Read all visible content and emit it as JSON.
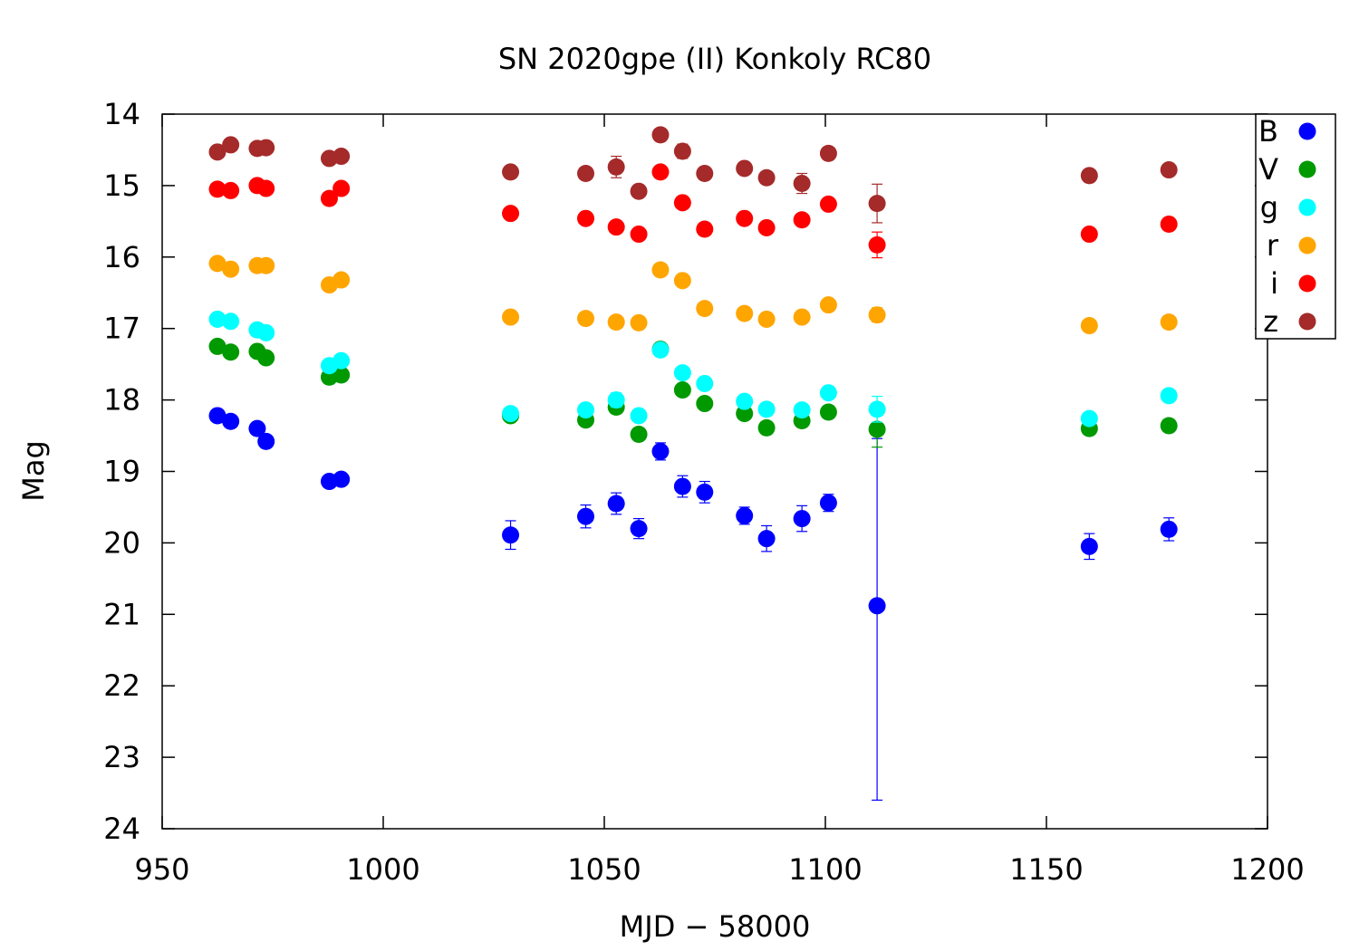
{
  "chart_data": {
    "type": "scatter",
    "title": "SN 2020gpe (II) Konkoly RC80",
    "xlabel": "MJD − 58000",
    "ylabel": "Mag",
    "xlim": [
      950,
      1200
    ],
    "ylim": [
      14,
      24
    ],
    "y_inverted": true,
    "x_ticks": [
      950,
      1000,
      1050,
      1100,
      1150,
      1200
    ],
    "y_ticks": [
      14,
      15,
      16,
      17,
      18,
      19,
      20,
      21,
      22,
      23,
      24
    ],
    "grid": false,
    "legend_position": "top-right",
    "series": [
      {
        "name": "B",
        "color": "#0000ff",
        "points": [
          {
            "x": 962.5,
            "y": 18.22,
            "err": 0.06
          },
          {
            "x": 965.5,
            "y": 18.3,
            "err": 0.06
          },
          {
            "x": 971.5,
            "y": 18.4,
            "err": 0.06
          },
          {
            "x": 973.5,
            "y": 18.58,
            "err": 0.06
          },
          {
            "x": 987.8,
            "y": 19.14,
            "err": 0.06
          },
          {
            "x": 990.5,
            "y": 19.11,
            "err": 0.06
          },
          {
            "x": 1028.8,
            "y": 19.89,
            "err": 0.2
          },
          {
            "x": 1045.8,
            "y": 19.63,
            "err": 0.16
          },
          {
            "x": 1052.7,
            "y": 19.45,
            "err": 0.15
          },
          {
            "x": 1057.8,
            "y": 19.8,
            "err": 0.14
          },
          {
            "x": 1062.7,
            "y": 18.72,
            "err": 0.12
          },
          {
            "x": 1067.7,
            "y": 19.21,
            "err": 0.15
          },
          {
            "x": 1072.7,
            "y": 19.29,
            "err": 0.15
          },
          {
            "x": 1081.7,
            "y": 19.62,
            "err": 0.12
          },
          {
            "x": 1086.7,
            "y": 19.94,
            "err": 0.18
          },
          {
            "x": 1094.7,
            "y": 19.66,
            "err": 0.18
          },
          {
            "x": 1100.7,
            "y": 19.44,
            "err": 0.12
          },
          {
            "x": 1111.7,
            "y": 20.88,
            "err_low": 2.34,
            "err_high": 2.72
          },
          {
            "x": 1159.7,
            "y": 20.05,
            "err": 0.18
          },
          {
            "x": 1177.7,
            "y": 19.81,
            "err": 0.16
          }
        ]
      },
      {
        "name": "V",
        "color": "#009900",
        "points": [
          {
            "x": 962.5,
            "y": 17.25,
            "err": 0.04
          },
          {
            "x": 965.5,
            "y": 17.33,
            "err": 0.04
          },
          {
            "x": 971.5,
            "y": 17.32,
            "err": 0.04
          },
          {
            "x": 973.5,
            "y": 17.41,
            "err": 0.04
          },
          {
            "x": 987.8,
            "y": 17.68,
            "err": 0.04
          },
          {
            "x": 990.5,
            "y": 17.65,
            "err": 0.04
          },
          {
            "x": 1028.8,
            "y": 18.22,
            "err": 0.06
          },
          {
            "x": 1045.8,
            "y": 18.28,
            "err": 0.06
          },
          {
            "x": 1052.7,
            "y": 18.1,
            "err": 0.07
          },
          {
            "x": 1057.8,
            "y": 18.48,
            "err": 0.06
          },
          {
            "x": 1062.7,
            "y": 17.29,
            "err": 0.05
          },
          {
            "x": 1067.7,
            "y": 17.86,
            "err": 0.05
          },
          {
            "x": 1072.7,
            "y": 18.05,
            "err": 0.05
          },
          {
            "x": 1081.7,
            "y": 18.19,
            "err": 0.05
          },
          {
            "x": 1086.7,
            "y": 18.39,
            "err": 0.06
          },
          {
            "x": 1094.7,
            "y": 18.29,
            "err": 0.08
          },
          {
            "x": 1100.7,
            "y": 18.17,
            "err": 0.05
          },
          {
            "x": 1111.7,
            "y": 18.41,
            "err": 0.25
          },
          {
            "x": 1159.7,
            "y": 18.4,
            "err": 0.05
          },
          {
            "x": 1177.7,
            "y": 18.36,
            "err": 0.05
          }
        ]
      },
      {
        "name": "g",
        "color": "#00ffff",
        "points": [
          {
            "x": 962.5,
            "y": 16.87,
            "err": 0.03
          },
          {
            "x": 965.5,
            "y": 16.9,
            "err": 0.03
          },
          {
            "x": 971.5,
            "y": 17.02,
            "err": 0.03
          },
          {
            "x": 973.5,
            "y": 17.06,
            "err": 0.03
          },
          {
            "x": 987.8,
            "y": 17.52,
            "err": 0.03
          },
          {
            "x": 990.5,
            "y": 17.45,
            "err": 0.03
          },
          {
            "x": 1028.8,
            "y": 18.19,
            "err": 0.06
          },
          {
            "x": 1045.8,
            "y": 18.14,
            "err": 0.06
          },
          {
            "x": 1052.7,
            "y": 18.0,
            "err": 0.1
          },
          {
            "x": 1057.8,
            "y": 18.22,
            "err": 0.05
          },
          {
            "x": 1062.7,
            "y": 17.3,
            "err": 0.05
          },
          {
            "x": 1067.7,
            "y": 17.62,
            "err": 0.05
          },
          {
            "x": 1072.7,
            "y": 17.77,
            "err": 0.05
          },
          {
            "x": 1081.7,
            "y": 18.02,
            "err": 0.05
          },
          {
            "x": 1086.7,
            "y": 18.13,
            "err": 0.05
          },
          {
            "x": 1094.7,
            "y": 18.14,
            "err": 0.08
          },
          {
            "x": 1100.7,
            "y": 17.9,
            "err": 0.05
          },
          {
            "x": 1111.7,
            "y": 18.13,
            "err": 0.18
          },
          {
            "x": 1159.7,
            "y": 18.26,
            "err": 0.05
          },
          {
            "x": 1177.7,
            "y": 17.94,
            "err": 0.05
          }
        ]
      },
      {
        "name": "r",
        "color": "#ffa500",
        "points": [
          {
            "x": 962.5,
            "y": 16.09,
            "err": 0.03
          },
          {
            "x": 965.5,
            "y": 16.17,
            "err": 0.03
          },
          {
            "x": 971.5,
            "y": 16.12,
            "err": 0.03
          },
          {
            "x": 973.5,
            "y": 16.12,
            "err": 0.03
          },
          {
            "x": 987.8,
            "y": 16.39,
            "err": 0.03
          },
          {
            "x": 990.5,
            "y": 16.32,
            "err": 0.03
          },
          {
            "x": 1028.8,
            "y": 16.84,
            "err": 0.04
          },
          {
            "x": 1045.8,
            "y": 16.86,
            "err": 0.04
          },
          {
            "x": 1052.7,
            "y": 16.91,
            "err": 0.05
          },
          {
            "x": 1057.8,
            "y": 16.92,
            "err": 0.04
          },
          {
            "x": 1062.7,
            "y": 16.18,
            "err": 0.04
          },
          {
            "x": 1067.7,
            "y": 16.33,
            "err": 0.04
          },
          {
            "x": 1072.7,
            "y": 16.72,
            "err": 0.04
          },
          {
            "x": 1081.7,
            "y": 16.79,
            "err": 0.04
          },
          {
            "x": 1086.7,
            "y": 16.87,
            "err": 0.04
          },
          {
            "x": 1094.7,
            "y": 16.84,
            "err": 0.04
          },
          {
            "x": 1100.7,
            "y": 16.67,
            "err": 0.04
          },
          {
            "x": 1111.7,
            "y": 16.81,
            "err": 0.1
          },
          {
            "x": 1159.7,
            "y": 16.96,
            "err": 0.04
          },
          {
            "x": 1177.7,
            "y": 16.91,
            "err": 0.04
          }
        ]
      },
      {
        "name": "i",
        "color": "#ff0000",
        "points": [
          {
            "x": 962.5,
            "y": 15.05,
            "err": 0.03
          },
          {
            "x": 965.5,
            "y": 15.07,
            "err": 0.03
          },
          {
            "x": 971.5,
            "y": 15.0,
            "err": 0.03
          },
          {
            "x": 973.5,
            "y": 15.04,
            "err": 0.03
          },
          {
            "x": 987.8,
            "y": 15.18,
            "err": 0.03
          },
          {
            "x": 990.5,
            "y": 15.04,
            "err": 0.03
          },
          {
            "x": 1028.8,
            "y": 15.39,
            "err": 0.04
          },
          {
            "x": 1045.8,
            "y": 15.46,
            "err": 0.04
          },
          {
            "x": 1052.7,
            "y": 15.58,
            "err": 0.05
          },
          {
            "x": 1057.8,
            "y": 15.68,
            "err": 0.04
          },
          {
            "x": 1062.7,
            "y": 14.81,
            "err": 0.04
          },
          {
            "x": 1067.7,
            "y": 15.24,
            "err": 0.04
          },
          {
            "x": 1072.7,
            "y": 15.61,
            "err": 0.04
          },
          {
            "x": 1081.7,
            "y": 15.46,
            "err": 0.04
          },
          {
            "x": 1086.7,
            "y": 15.59,
            "err": 0.04
          },
          {
            "x": 1094.7,
            "y": 15.48,
            "err": 0.04
          },
          {
            "x": 1100.7,
            "y": 15.26,
            "err": 0.04
          },
          {
            "x": 1111.7,
            "y": 15.83,
            "err": 0.18
          },
          {
            "x": 1159.7,
            "y": 15.68,
            "err": 0.04
          },
          {
            "x": 1177.7,
            "y": 15.54,
            "err": 0.04
          }
        ]
      },
      {
        "name": "z",
        "color": "#a52a2a",
        "points": [
          {
            "x": 962.5,
            "y": 14.53,
            "err": 0.04
          },
          {
            "x": 965.5,
            "y": 14.43,
            "err": 0.04
          },
          {
            "x": 971.5,
            "y": 14.48,
            "err": 0.04
          },
          {
            "x": 973.5,
            "y": 14.47,
            "err": 0.04
          },
          {
            "x": 987.8,
            "y": 14.62,
            "err": 0.04
          },
          {
            "x": 990.5,
            "y": 14.59,
            "err": 0.04
          },
          {
            "x": 1028.8,
            "y": 14.81,
            "err": 0.05
          },
          {
            "x": 1045.8,
            "y": 14.83,
            "err": 0.05
          },
          {
            "x": 1052.7,
            "y": 14.74,
            "err": 0.15
          },
          {
            "x": 1057.8,
            "y": 15.08,
            "err": 0.06
          },
          {
            "x": 1062.7,
            "y": 14.29,
            "err": 0.06
          },
          {
            "x": 1067.7,
            "y": 14.52,
            "err": 0.1
          },
          {
            "x": 1072.7,
            "y": 14.83,
            "err": 0.06
          },
          {
            "x": 1081.7,
            "y": 14.76,
            "err": 0.05
          },
          {
            "x": 1086.7,
            "y": 14.89,
            "err": 0.05
          },
          {
            "x": 1094.7,
            "y": 14.97,
            "err": 0.14
          },
          {
            "x": 1100.7,
            "y": 14.55,
            "err": 0.05
          },
          {
            "x": 1111.7,
            "y": 15.25,
            "err": 0.27
          },
          {
            "x": 1159.7,
            "y": 14.86,
            "err": 0.05
          },
          {
            "x": 1177.7,
            "y": 14.78,
            "err": 0.05
          }
        ]
      }
    ]
  }
}
